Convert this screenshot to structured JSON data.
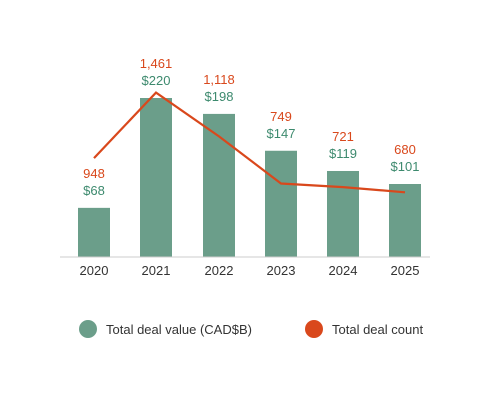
{
  "chart_data": {
    "type": "bar",
    "categories": [
      "2020",
      "2021",
      "2022",
      "2023",
      "2024",
      "2025"
    ],
    "series": [
      {
        "name": "Total deal value (CAD$B)",
        "kind": "bar",
        "values": [
          68,
          220,
          198,
          147,
          119,
          101
        ],
        "labels": [
          "$68",
          "$220",
          "$198",
          "$147",
          "$119",
          "$101"
        ]
      },
      {
        "name": "Total deal count",
        "kind": "line",
        "values": [
          948,
          1461,
          1118,
          749,
          721,
          680
        ],
        "labels": [
          "948",
          "1,461",
          "1,118",
          "749",
          "721",
          "680"
        ]
      }
    ],
    "legend_position": "bottom",
    "grid": false
  },
  "colors": {
    "bar": "#6b9e8a",
    "bar_label": "#3d8a6e",
    "line": "#d9481c",
    "line_label": "#d9481c",
    "axis": "#cccccc"
  }
}
